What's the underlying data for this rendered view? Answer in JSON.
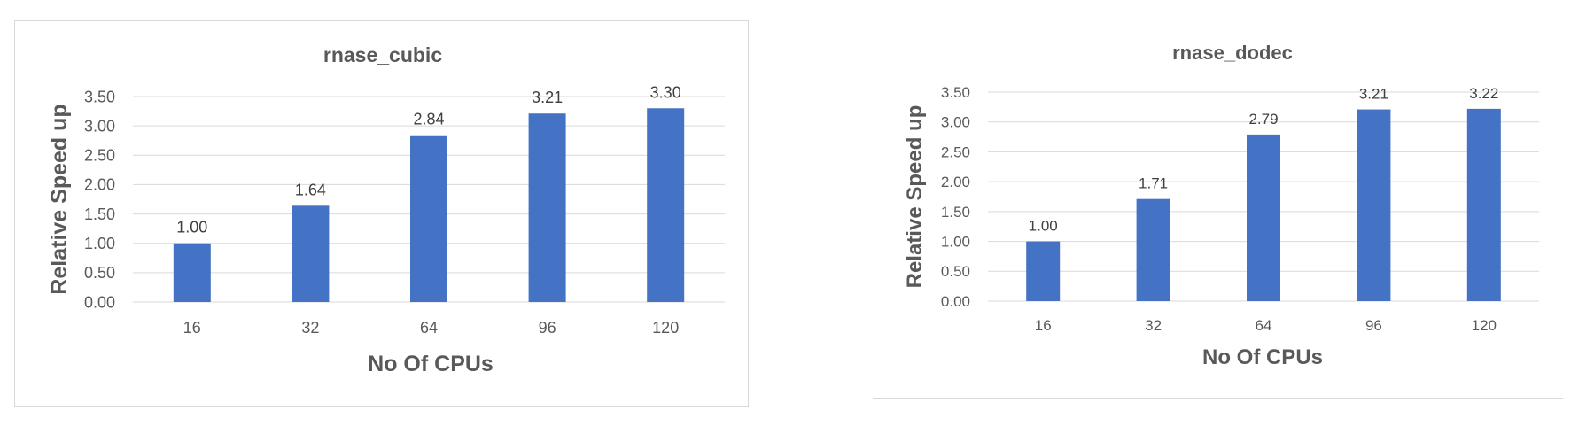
{
  "chart_data": [
    {
      "type": "bar",
      "title": "rnase_cubic",
      "xlabel": "No Of CPUs",
      "ylabel": "Relative Speed up",
      "categories": [
        "16",
        "32",
        "64",
        "96",
        "120"
      ],
      "values": [
        1.0,
        1.64,
        2.84,
        3.21,
        3.3
      ],
      "data_labels": [
        "1.00",
        "1.64",
        "2.84",
        "3.21",
        "3.30"
      ],
      "ylim": [
        0,
        3.5
      ],
      "yticks": [
        "0.00",
        "0.50",
        "1.00",
        "1.50",
        "2.00",
        "2.50",
        "3.00",
        "3.50"
      ],
      "grid": true,
      "legend": "none",
      "bar_color": "#4472c4"
    },
    {
      "type": "bar",
      "title": "rnase_dodec",
      "xlabel": "No Of CPUs",
      "ylabel": "Relative Speed up",
      "categories": [
        "16",
        "32",
        "64",
        "96",
        "120"
      ],
      "values": [
        1.0,
        1.71,
        2.79,
        3.21,
        3.22
      ],
      "data_labels": [
        "1.00",
        "1.71",
        "2.79",
        "3.21",
        "3.22"
      ],
      "ylim": [
        0,
        3.5
      ],
      "yticks": [
        "0.00",
        "0.50",
        "1.00",
        "1.50",
        "2.00",
        "2.50",
        "3.00",
        "3.50"
      ],
      "grid": true,
      "legend": "none",
      "bar_color": "#4472c4"
    }
  ]
}
